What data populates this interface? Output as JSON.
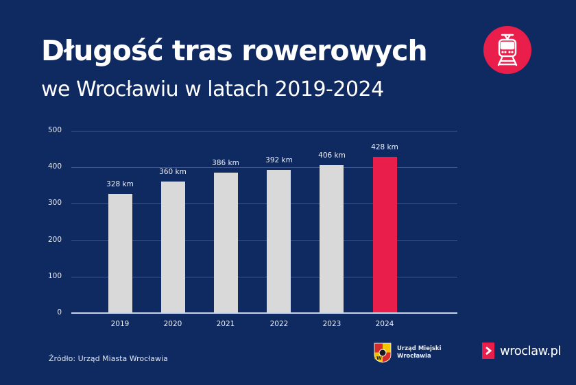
{
  "header": {
    "title": "Długość tras rowerowych",
    "subtitle": "we Wrocławiu w latach 2019-2024",
    "badge_icon": "tram-icon"
  },
  "colors": {
    "background": "#0f2a61",
    "bar_default": "#d9d9d9",
    "bar_highlight": "#e91e4a",
    "gridline": "#3a5590"
  },
  "chart_data": {
    "type": "bar",
    "title": "Długość tras rowerowych we Wrocławiu w latach 2019-2024",
    "categories": [
      "2019",
      "2020",
      "2021",
      "2022",
      "2023",
      "2024"
    ],
    "values": [
      328,
      360,
      386,
      392,
      406,
      428
    ],
    "value_labels": [
      "328 km",
      "360 km",
      "386 km",
      "392 km",
      "406 km",
      "428 km"
    ],
    "unit": "km",
    "highlight_index": 5,
    "xlabel": "",
    "ylabel": "",
    "ylim": [
      0,
      500
    ],
    "yticks": [
      "0",
      "100",
      "200",
      "300",
      "400",
      "500"
    ],
    "grid": true,
    "legend": null
  },
  "footer": {
    "source": "Źródło: Urząd Miasta Wrocławia",
    "um_logo_line1": "Urząd Miejski",
    "um_logo_line2": "Wrocławia",
    "site_logo": "wroclaw.pl"
  }
}
